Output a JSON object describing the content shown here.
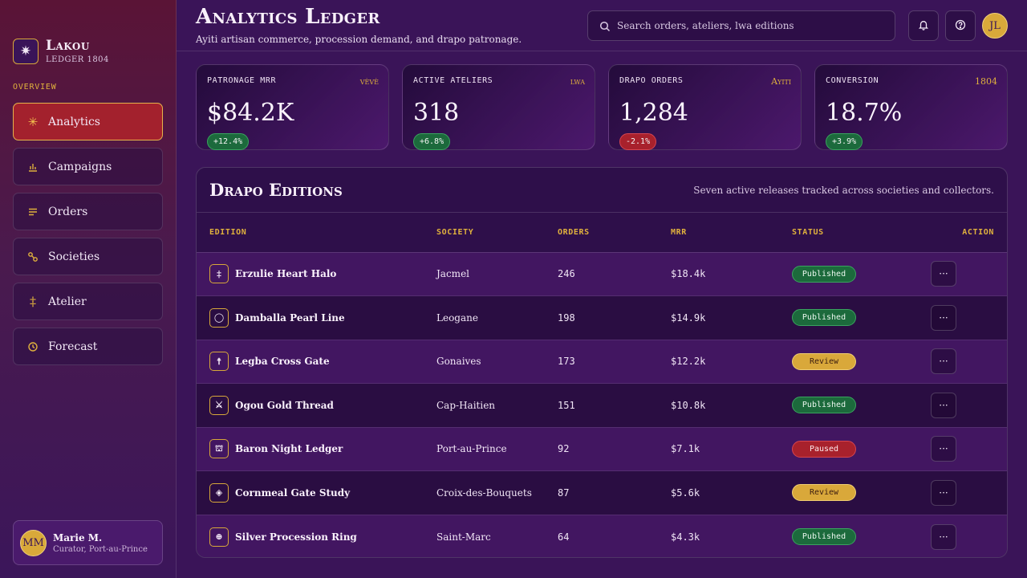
{
  "brand": {
    "title": "Lakou",
    "subtitle": "LEDGER 1804",
    "mark": "✷"
  },
  "sidebar": {
    "section_label": "OVERVIEW",
    "items": [
      {
        "label": "Analytics",
        "icon": "asterisk-icon",
        "glyph": "✳",
        "active": true
      },
      {
        "label": "Campaigns",
        "icon": "bar-chart-icon",
        "glyph": "",
        "active": false
      },
      {
        "label": "Orders",
        "icon": "list-icon",
        "glyph": "",
        "active": false
      },
      {
        "label": "Societies",
        "icon": "link-icon",
        "glyph": "",
        "active": false
      },
      {
        "label": "Atelier",
        "icon": "double-dagger-icon",
        "glyph": "‡",
        "active": false
      },
      {
        "label": "Forecast",
        "icon": "clock-icon",
        "glyph": "",
        "active": false
      }
    ]
  },
  "profile": {
    "initials": "MM",
    "name": "Marie M.",
    "role": "Curator, Port-au-Prince"
  },
  "header": {
    "title": "Analytics Ledger",
    "subtitle": "Ayiti artisan commerce, procession demand, and drapo patronage.",
    "search_placeholder": "Search orders, ateliers, lwa editions",
    "user_initials": "JL"
  },
  "kpis": [
    {
      "label": "PATRONAGE MRR",
      "tag": "vèvè",
      "value": "$84.2K",
      "delta": "+12.4%",
      "trend": "up"
    },
    {
      "label": "ACTIVE ATELIERS",
      "tag": "lwa",
      "value": "318",
      "delta": "+6.8%",
      "trend": "up"
    },
    {
      "label": "DRAPO ORDERS",
      "tag": "Ayiti",
      "value": "1,284",
      "delta": "-2.1%",
      "trend": "down"
    },
    {
      "label": "CONVERSION",
      "tag": "1804",
      "value": "18.7%",
      "delta": "+3.9%",
      "trend": "up"
    }
  ],
  "table": {
    "title": "Drapo Editions",
    "note": "Seven active releases tracked across societies and collectors.",
    "columns": [
      "EDITION",
      "SOCIETY",
      "ORDERS",
      "MRR",
      "STATUS",
      "ACTION"
    ],
    "rows": [
      {
        "edition": "Erzulie Heart Halo",
        "icon": "dagger-icon",
        "glyph": "‡",
        "society": "Jacmel",
        "orders": "246",
        "mrr": "$18.4k",
        "status": "Published"
      },
      {
        "edition": "Damballa Pearl Line",
        "icon": "eye-icon",
        "glyph": "◯",
        "society": "Leogane",
        "orders": "198",
        "mrr": "$14.9k",
        "status": "Published"
      },
      {
        "edition": "Legba Cross Gate",
        "icon": "cross-icon",
        "glyph": "☨",
        "society": "Gonaives",
        "orders": "173",
        "mrr": "$12.2k",
        "status": "Review"
      },
      {
        "edition": "Ogou Gold Thread",
        "icon": "sword-icon",
        "glyph": "⚔",
        "society": "Cap-Haitien",
        "orders": "151",
        "mrr": "$10.8k",
        "status": "Published"
      },
      {
        "edition": "Baron Night Ledger",
        "icon": "tomb-icon",
        "glyph": "⛫",
        "society": "Port-au-Prince",
        "orders": "92",
        "mrr": "$7.1k",
        "status": "Paused"
      },
      {
        "edition": "Cornmeal Gate Study",
        "icon": "diamond-icon",
        "glyph": "◈",
        "society": "Croix-des-Bouquets",
        "orders": "87",
        "mrr": "$5.6k",
        "status": "Review"
      },
      {
        "edition": "Silver Procession Ring",
        "icon": "ring-icon",
        "glyph": "⊕",
        "society": "Saint-Marc",
        "orders": "64",
        "mrr": "$4.3k",
        "status": "Published"
      }
    ],
    "action_glyph": "···"
  },
  "colors": {
    "accent_gold": "#e0b13d",
    "active_red": "#a3212d",
    "published_green": "#1c6a3c",
    "review_gold": "#d9a83a",
    "paused_red": "#a8212c",
    "background_purple": "#3a1458"
  }
}
